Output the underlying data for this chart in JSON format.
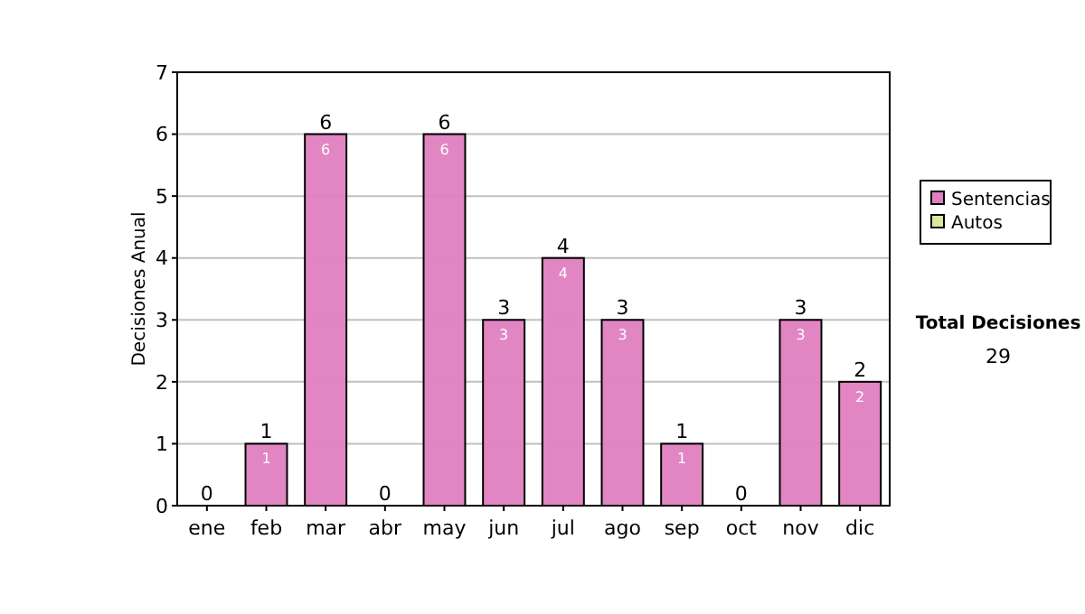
{
  "chart_data": {
    "type": "bar",
    "stacked": true,
    "ylabel": "Decisiones Anual",
    "categories": [
      "ene",
      "feb",
      "mar",
      "abr",
      "may",
      "jun",
      "jul",
      "ago",
      "sep",
      "oct",
      "nov",
      "dic"
    ],
    "series": [
      {
        "name": "Sentencias",
        "color": "#df80c0",
        "values": [
          0,
          1,
          6,
          0,
          6,
          3,
          4,
          3,
          1,
          0,
          3,
          2
        ],
        "value_labels": [
          null,
          "1",
          "6",
          null,
          "6",
          "3",
          "4",
          "3",
          "1",
          null,
          "3",
          "2"
        ]
      },
      {
        "name": "Autos",
        "color": "#d8e8a0",
        "values": [
          0,
          0,
          0,
          0,
          0,
          0,
          0,
          0,
          0,
          0,
          0,
          0
        ]
      }
    ],
    "totals": [
      "0",
      "1",
      "6",
      "0",
      "6",
      "3",
      "4",
      "3",
      "1",
      "0",
      "3",
      "2"
    ],
    "ylim": [
      0,
      7
    ],
    "yticks": [
      0,
      1,
      2,
      3,
      4,
      5,
      6,
      7
    ],
    "grid": "y",
    "legend": "right",
    "annotations": [
      "Total Decisiones",
      "29"
    ]
  }
}
